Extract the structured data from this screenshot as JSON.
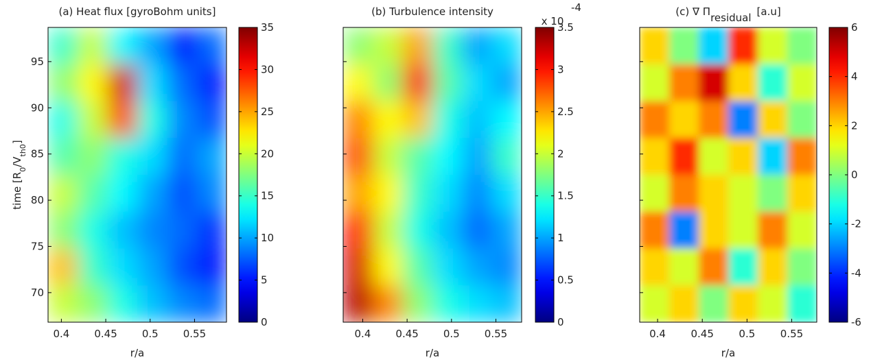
{
  "chart_data": [
    {
      "type": "heatmap",
      "title": "(a) Heat flux [gyroBohm units]",
      "xlabel": "r/a",
      "ylabel": [
        "time [R",
        "0",
        "/V",
        "th0",
        "]"
      ],
      "xlim": [
        0.385,
        0.586
      ],
      "ylim": [
        66.8,
        98.7
      ],
      "xticks": [
        0.4,
        0.45,
        0.5,
        0.55
      ],
      "yticks": [
        70,
        75,
        80,
        85,
        90,
        95
      ],
      "zlim": [
        0,
        35
      ],
      "zticks": [
        0,
        5,
        10,
        15,
        20,
        25,
        30,
        35
      ],
      "colormap": "jet",
      "z": [
        [
          15,
          20,
          13,
          10,
          5,
          8
        ],
        [
          18,
          22,
          32,
          12,
          8,
          5
        ],
        [
          14,
          20,
          28,
          14,
          9,
          7
        ],
        [
          16,
          18,
          14,
          12,
          8,
          10
        ],
        [
          20,
          16,
          13,
          10,
          7,
          9
        ],
        [
          18,
          14,
          11,
          9,
          8,
          6
        ],
        [
          24,
          15,
          12,
          10,
          7,
          5
        ],
        [
          20,
          18,
          14,
          11,
          9,
          8
        ]
      ]
    },
    {
      "type": "heatmap",
      "title": "(b) Turbulence intensity",
      "xlabel": "r/a",
      "xlim": [
        0.378,
        0.579
      ],
      "ylim": [
        66.8,
        98.7
      ],
      "xticks": [
        0.4,
        0.45,
        0.5,
        0.55
      ],
      "yticks": [
        70,
        75,
        80,
        85,
        90,
        95
      ],
      "zlim": [
        0,
        3.5
      ],
      "zticks": [
        0,
        0.5,
        1,
        1.5,
        2,
        2.5,
        3,
        3.5
      ],
      "colormap": "jet",
      "zscale_label": "x 10",
      "zscale_exponent": "-4",
      "z": [
        [
          1.8,
          2.0,
          2.5,
          1.5,
          1.0,
          1.2
        ],
        [
          2.2,
          1.8,
          3.0,
          1.6,
          1.2,
          1.0
        ],
        [
          2.6,
          2.2,
          2.4,
          1.4,
          1.1,
          1.3
        ],
        [
          2.8,
          2.0,
          1.6,
          1.3,
          1.0,
          1.5
        ],
        [
          2.5,
          2.2,
          1.5,
          1.2,
          0.9,
          1.2
        ],
        [
          3.0,
          2.0,
          1.4,
          1.1,
          0.8,
          1.0
        ],
        [
          3.2,
          2.2,
          1.6,
          1.2,
          1.0,
          0.9
        ],
        [
          3.3,
          2.6,
          1.8,
          1.4,
          1.2,
          1.1
        ]
      ]
    },
    {
      "type": "heatmap",
      "title": "(c) ∇ Π",
      "title_subscript": "residual",
      "title_suffix": "[a.u]",
      "xlabel": "r/a",
      "xlim": [
        0.38,
        0.578
      ],
      "ylim": [
        66.8,
        98.7
      ],
      "xticks": [
        0.4,
        0.45,
        0.5,
        0.55
      ],
      "yticks": [
        70,
        75,
        80,
        85,
        90,
        95
      ],
      "zlim": [
        -6,
        6
      ],
      "zticks": [
        -6,
        -4,
        -2,
        0,
        2,
        4,
        6
      ],
      "colormap": "jet",
      "z": [
        [
          2,
          0,
          -2,
          4,
          1,
          0
        ],
        [
          1,
          3,
          5,
          2,
          -1,
          1
        ],
        [
          3,
          2,
          3,
          -3,
          2,
          0
        ],
        [
          2,
          4,
          1,
          2,
          -2,
          3
        ],
        [
          1,
          3,
          2,
          1,
          0,
          2
        ],
        [
          3,
          -3,
          2,
          1,
          3,
          1
        ],
        [
          2,
          1,
          3,
          -1,
          2,
          0
        ],
        [
          1,
          2,
          0,
          2,
          1,
          -1
        ]
      ]
    }
  ]
}
